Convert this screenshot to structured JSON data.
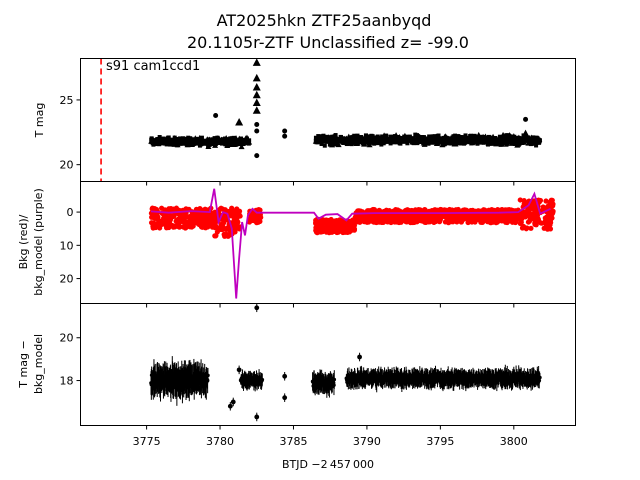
{
  "chart_data": {
    "type": "scatter",
    "title_line1": "AT2025hkn  ZTF25aanbyqd",
    "title_line2": "20.1105r-ZTF Unclassified z= -99.0",
    "xlabel": "BTJD −2 457 000",
    "xlim": [
      3770.5,
      3804.2
    ],
    "x_ticks": [
      3775,
      3780,
      3785,
      3790,
      3795,
      3800
    ],
    "panels": [
      {
        "name": "tmag",
        "ylabel": "T mag",
        "ylim": [
          28.2,
          18.7
        ],
        "y_ticks": [
          20,
          25
        ],
        "annotation": "s91 cam1ccd1",
        "vline_x": 3771.9,
        "vline_color": "#ff0000",
        "band_segments": [
          [
            3775.3,
            3782.0,
            21.8,
            0.45
          ],
          [
            3786.5,
            3801.8,
            21.9,
            0.5
          ]
        ],
        "points": [
          [
            3779.7,
            23.8
          ],
          [
            3782.5,
            22.6
          ],
          [
            3782.5,
            23.1
          ],
          [
            3782.5,
            20.7
          ],
          [
            3784.4,
            22.2
          ],
          [
            3784.4,
            22.6
          ],
          [
            3800.8,
            23.5
          ]
        ],
        "triangles": [
          [
            3782.5,
            26.7
          ],
          [
            3782.5,
            26.0
          ],
          [
            3782.5,
            25.4
          ],
          [
            3782.5,
            24.8
          ],
          [
            3782.5,
            24.2
          ],
          [
            3782.5,
            27.9
          ],
          [
            3800.8,
            22.4
          ],
          [
            3781.3,
            23.3
          ]
        ]
      },
      {
        "name": "bkg",
        "ylabel_line1": "Bkg (red)/",
        "ylabel_line2": "bkg_model (purple)",
        "ylim": [
          -9.2,
          27.5
        ],
        "y_ticks": [
          0,
          10,
          20
        ],
        "red_segments": [
          [
            3775.3,
            3779.6,
            0.0,
            6.0
          ],
          [
            3779.6,
            3781.4,
            0.5,
            9.0
          ],
          [
            3782.0,
            3782.8,
            0.0,
            4.0
          ],
          [
            3786.5,
            3789.2,
            3.0,
            7.0
          ],
          [
            3789.2,
            3800.4,
            0.0,
            4.0
          ],
          [
            3800.4,
            3802.7,
            -2.0,
            7.0
          ]
        ],
        "red_color": "#ff0000",
        "model_color": "#bf00bf",
        "model_line": [
          [
            3775.3,
            -0.2
          ],
          [
            3776.5,
            0.2
          ],
          [
            3778.0,
            -0.3
          ],
          [
            3779.3,
            0.0
          ],
          [
            3779.6,
            -7.0
          ],
          [
            3779.9,
            3.0
          ],
          [
            3780.2,
            0.0
          ],
          [
            3780.5,
            0.5
          ],
          [
            3780.8,
            5.0
          ],
          [
            3781.1,
            26.0
          ],
          [
            3781.3,
            14.0
          ],
          [
            3781.5,
            3.0
          ],
          [
            3781.7,
            7.0
          ],
          [
            3781.9,
            1.0
          ],
          [
            3782.2,
            -1.0
          ],
          [
            3782.5,
            0.2
          ],
          [
            3786.4,
            0.2
          ],
          [
            3786.7,
            2.0
          ],
          [
            3787.2,
            0.8
          ],
          [
            3788.0,
            0.6
          ],
          [
            3788.6,
            2.5
          ],
          [
            3789.0,
            0.5
          ],
          [
            3790.5,
            0.3
          ],
          [
            3795.0,
            0.3
          ],
          [
            3799.0,
            0.2
          ],
          [
            3800.3,
            0.0
          ],
          [
            3801.0,
            -2.0
          ],
          [
            3801.4,
            -5.5
          ],
          [
            3801.8,
            0.5
          ],
          [
            3802.5,
            -1.0
          ]
        ]
      },
      {
        "name": "diff",
        "ylabel_line1": "T mag −",
        "ylabel_line2": "bkg_model",
        "ylim": [
          21.6,
          15.9
        ],
        "y_ticks": [
          18,
          20
        ],
        "black_segments": [
          [
            3775.3,
            3779.2,
            18.0,
            0.8
          ],
          [
            3781.4,
            3782.9,
            18.0,
            0.4
          ],
          [
            3786.3,
            3787.8,
            17.9,
            0.5
          ],
          [
            3788.6,
            3801.8,
            18.1,
            0.45
          ]
        ],
        "points": [
          [
            3780.7,
            16.8
          ],
          [
            3780.9,
            17.0
          ],
          [
            3782.5,
            16.3
          ],
          [
            3781.3,
            18.5
          ],
          [
            3784.4,
            17.2
          ],
          [
            3784.4,
            18.2
          ],
          [
            3782.5,
            21.4
          ],
          [
            3789.5,
            19.1
          ]
        ]
      }
    ]
  }
}
